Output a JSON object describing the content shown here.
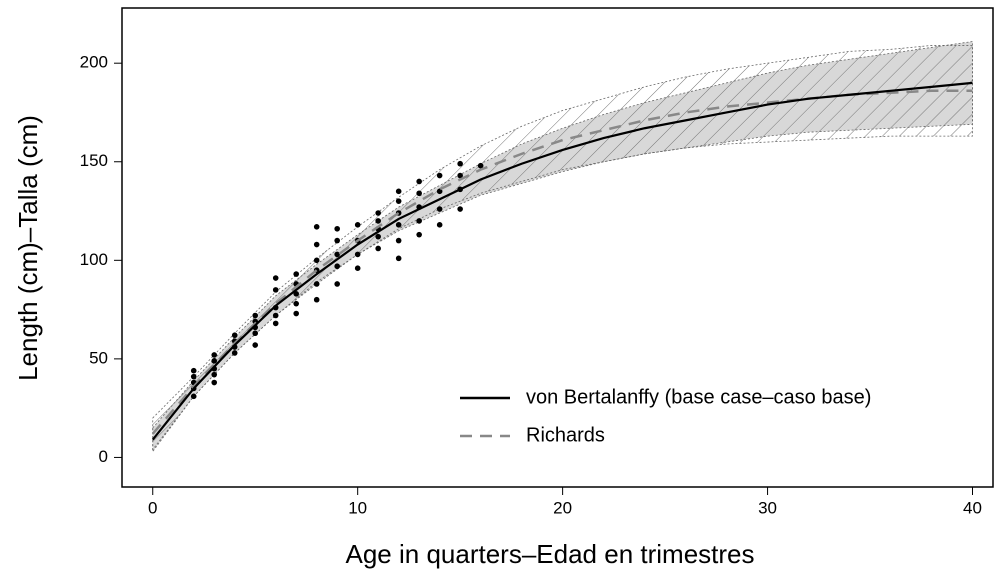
{
  "chart_data": {
    "type": "line",
    "xlabel": "Age in quarters–Edad en trimestres",
    "ylabel": "Length (cm)–Talla (cm)",
    "xlim": [
      -1.5,
      41
    ],
    "ylim": [
      -15,
      228
    ],
    "xticks": [
      0,
      10,
      20,
      30,
      40
    ],
    "yticks": [
      0,
      50,
      100,
      150,
      200
    ],
    "legend": "bottom-right",
    "x": [
      0,
      2,
      4,
      6,
      8,
      10,
      12,
      14,
      16,
      18,
      20,
      22,
      24,
      26,
      28,
      30,
      32,
      34,
      36,
      38,
      40
    ],
    "series": [
      {
        "name": "von Bertalanffy (base case–caso base)",
        "color": "#000000",
        "dash": false,
        "band": "solid",
        "values": [
          9,
          35,
          57,
          77,
          93,
          108,
          121,
          131,
          141,
          149,
          156,
          162,
          167,
          171,
          175,
          179,
          182,
          184,
          186,
          188,
          190
        ],
        "lower": [
          3,
          31,
          53,
          72,
          88,
          103,
          115,
          124,
          133,
          139,
          145,
          150,
          154,
          157,
          160,
          163,
          165,
          166,
          167,
          168,
          169
        ],
        "upper": [
          15,
          39,
          61,
          82,
          98,
          113,
          127,
          138,
          149,
          159,
          167,
          174,
          180,
          185,
          190,
          195,
          199,
          202,
          205,
          208,
          211
        ]
      },
      {
        "name": "Richards",
        "color": "#888888",
        "dash": true,
        "band": "hatch",
        "values": [
          12,
          36,
          58,
          78,
          95,
          110,
          124,
          136,
          146,
          154,
          161,
          166,
          171,
          175,
          178,
          180,
          182,
          184,
          185,
          186,
          186
        ],
        "lower": [
          4,
          31,
          53,
          72,
          89,
          103,
          116,
          126,
          134,
          140,
          146,
          150,
          154,
          157,
          159,
          160,
          161,
          162,
          163,
          163,
          163
        ],
        "upper": [
          20,
          41,
          63,
          84,
          101,
          117,
          132,
          146,
          158,
          168,
          176,
          182,
          188,
          193,
          197,
          200,
          203,
          206,
          207,
          209,
          209
        ]
      }
    ],
    "points": {
      "x": [
        2,
        2,
        2,
        2,
        2,
        3,
        3,
        3,
        3,
        3,
        4,
        4,
        4,
        4,
        5,
        5,
        5,
        5,
        5,
        6,
        6,
        6,
        6,
        6,
        7,
        7,
        7,
        7,
        7,
        8,
        8,
        8,
        8,
        8,
        8,
        9,
        9,
        9,
        9,
        9,
        10,
        10,
        10,
        10,
        11,
        11,
        11,
        11,
        11,
        12,
        12,
        12,
        12,
        12,
        12,
        13,
        13,
        13,
        13,
        13,
        14,
        14,
        14,
        14,
        15,
        15,
        15,
        15,
        16
      ],
      "y": [
        31,
        35,
        38,
        41,
        44,
        38,
        42,
        45,
        49,
        52,
        53,
        56,
        59,
        62,
        57,
        63,
        66,
        69,
        72,
        68,
        72,
        76,
        85,
        91,
        73,
        78,
        83,
        88,
        93,
        80,
        88,
        95,
        100,
        108,
        117,
        88,
        97,
        103,
        110,
        116,
        96,
        103,
        110,
        118,
        106,
        112,
        116,
        120,
        124,
        101,
        110,
        118,
        124,
        130,
        135,
        113,
        120,
        127,
        134,
        140,
        118,
        126,
        135,
        143,
        126,
        136,
        143,
        149,
        148
      ]
    }
  }
}
